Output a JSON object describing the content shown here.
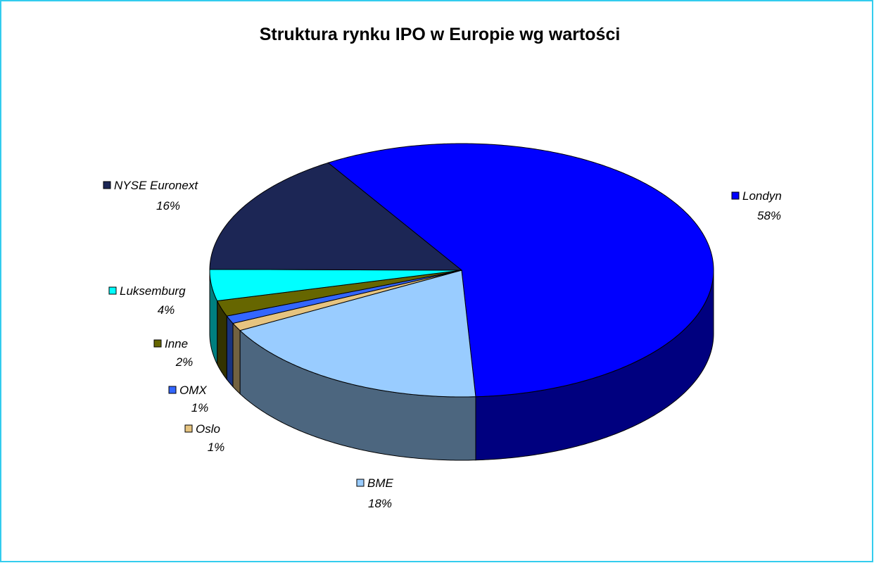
{
  "chart_data": {
    "type": "pie",
    "title": "Struktura rynku IPO w Europie wg wartości",
    "categories": [
      "Londyn",
      "BME",
      "Oslo",
      "OMX",
      "Inne",
      "Luksemburg",
      "NYSE Euronext"
    ],
    "values": [
      58,
      18,
      1,
      1,
      2,
      4,
      16
    ],
    "value_labels": [
      "58%",
      "18%",
      "1%",
      "1%",
      "2%",
      "4%",
      "16%"
    ],
    "colors": [
      "#0000ff",
      "#99ccff",
      "#e6c480",
      "#3366ff",
      "#666600",
      "#00ffff",
      "#1c2655"
    ]
  }
}
